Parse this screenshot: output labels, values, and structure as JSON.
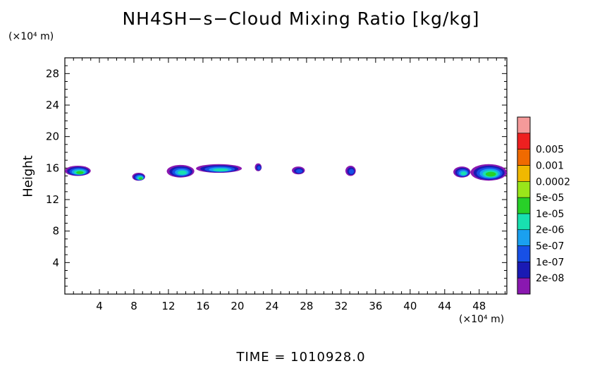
{
  "title": "NH4SH−s−Cloud Mixing Ratio [kg/kg]",
  "y_unit": "(×10⁴ m)",
  "x_unit": "(×10⁴ m)",
  "footer": "TIME  =  1010928.0",
  "chart_data": {
    "type": "heatmap",
    "title": "NH4SH−s−Cloud Mixing Ratio [kg/kg]",
    "xlabel": "",
    "ylabel": "Height",
    "x_unit": "(×10⁴ m)",
    "y_unit": "(×10⁴ m)",
    "xlim": [
      0,
      51.2
    ],
    "ylim": [
      0,
      30
    ],
    "xticks": [
      4,
      8,
      12,
      16,
      20,
      24,
      28,
      32,
      36,
      40,
      44,
      48
    ],
    "yticks": [
      4,
      8,
      12,
      16,
      20,
      24,
      28
    ],
    "grid": false,
    "legend": {
      "placement": "right",
      "levels": [
        "2e-08",
        "1e-07",
        "5e-07",
        "2e-06",
        "1e-05",
        "5e-05",
        "0.0002",
        "0.001",
        "0.005"
      ],
      "colors": [
        "#8a18b0",
        "#1a1ab4",
        "#1750e6",
        "#1aa0f0",
        "#18e0b0",
        "#28d028",
        "#9ae61a",
        "#f0b800",
        "#f06a00",
        "#ee2020",
        "#f59a9a"
      ]
    },
    "clouds": [
      {
        "x": [
          0.0,
          3.0
        ],
        "y": [
          15.0,
          16.3
        ],
        "level": "5e-05"
      },
      {
        "x": [
          7.8,
          9.3
        ],
        "y": [
          14.4,
          15.4
        ],
        "level": "5e-05"
      },
      {
        "x": [
          11.8,
          15.0
        ],
        "y": [
          14.8,
          16.4
        ],
        "level": "1e-05"
      },
      {
        "x": [
          15.2,
          20.5
        ],
        "y": [
          15.4,
          16.5
        ],
        "level": "1e-05"
      },
      {
        "x": [
          22.0,
          22.8
        ],
        "y": [
          15.6,
          16.6
        ],
        "level": "5e-07"
      },
      {
        "x": [
          26.3,
          27.8
        ],
        "y": [
          15.2,
          16.2
        ],
        "level": "5e-07"
      },
      {
        "x": [
          32.5,
          33.7
        ],
        "y": [
          15.0,
          16.3
        ],
        "level": "5e-07"
      },
      {
        "x": [
          45.0,
          47.0
        ],
        "y": [
          14.8,
          16.2
        ],
        "level": "1e-05"
      },
      {
        "x": [
          47.0,
          51.2
        ],
        "y": [
          14.4,
          16.5
        ],
        "level": "5e-05"
      }
    ]
  }
}
